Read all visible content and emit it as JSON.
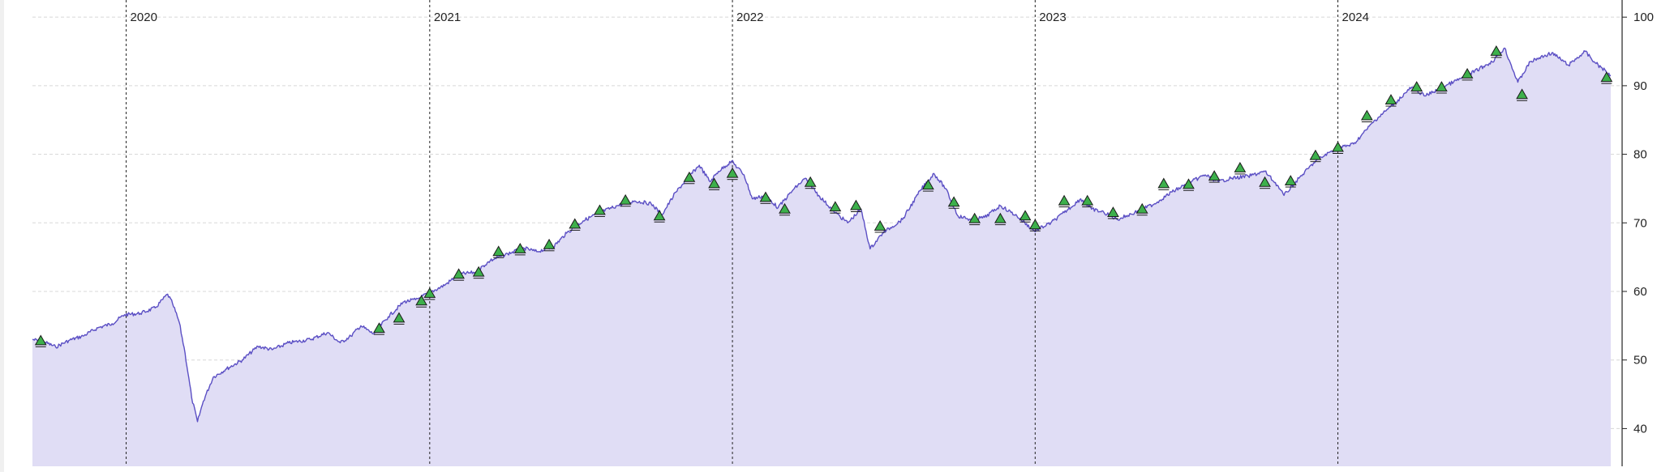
{
  "chart_data": {
    "type": "area",
    "x_unit": "date",
    "y_axis": {
      "position": "right",
      "range": [
        34.5,
        102.5
      ],
      "ticks": [
        40,
        50,
        60,
        70,
        80,
        90,
        100
      ],
      "tick_labels": [
        "40",
        "50",
        "60",
        "70",
        "80",
        "90",
        "100"
      ]
    },
    "x_axis": {
      "range": [
        "2019-09-10",
        "2024-11-26"
      ],
      "year_markers": [
        {
          "date": "2020-01-01",
          "label": "2020"
        },
        {
          "date": "2021-01-01",
          "label": "2021"
        },
        {
          "date": "2022-01-01",
          "label": "2022"
        },
        {
          "date": "2023-01-01",
          "label": "2023"
        },
        {
          "date": "2024-01-01",
          "label": "2024"
        }
      ]
    },
    "grid": {
      "horizontal": true,
      "style": "dashed"
    },
    "colors": {
      "line": "#5b4fc4",
      "fill": "#e0ddf5",
      "marker_fill": "#3db04b",
      "marker_edge": "#1a1a1a",
      "grid": "#d8d8d8",
      "year_line": "#222222",
      "axis": "#222222"
    },
    "series": [
      {
        "values": [
          [
            "2019-09-10",
            53.0
          ],
          [
            "2019-09-25",
            52.6
          ],
          [
            "2019-10-08",
            51.9
          ],
          [
            "2019-10-25",
            52.9
          ],
          [
            "2019-11-10",
            53.5
          ],
          [
            "2019-11-28",
            54.7
          ],
          [
            "2019-12-15",
            55.3
          ],
          [
            "2019-12-30",
            56.6
          ],
          [
            "2020-01-18",
            56.8
          ],
          [
            "2020-02-05",
            57.6
          ],
          [
            "2020-02-20",
            59.6
          ],
          [
            "2020-02-26",
            58.2
          ],
          [
            "2020-03-05",
            55.5
          ],
          [
            "2020-03-12",
            51.0
          ],
          [
            "2020-03-20",
            44.5
          ],
          [
            "2020-03-27",
            41.0
          ],
          [
            "2020-04-03",
            44.0
          ],
          [
            "2020-04-15",
            47.5
          ],
          [
            "2020-05-01",
            48.7
          ],
          [
            "2020-05-20",
            50.0
          ],
          [
            "2020-06-08",
            52.0
          ],
          [
            "2020-06-25",
            51.5
          ],
          [
            "2020-07-15",
            52.5
          ],
          [
            "2020-08-10",
            53.0
          ],
          [
            "2020-08-31",
            54.0
          ],
          [
            "2020-09-15",
            52.5
          ],
          [
            "2020-09-28",
            53.5
          ],
          [
            "2020-10-10",
            55.0
          ],
          [
            "2020-10-25",
            53.8
          ],
          [
            "2020-11-12",
            56.3
          ],
          [
            "2020-12-01",
            58.5
          ],
          [
            "2020-12-15",
            58.8
          ],
          [
            "2021-01-01",
            59.8
          ],
          [
            "2021-01-20",
            61.0
          ],
          [
            "2021-02-05",
            62.5
          ],
          [
            "2021-02-25",
            62.8
          ],
          [
            "2021-03-15",
            64.5
          ],
          [
            "2021-04-05",
            65.5
          ],
          [
            "2021-04-25",
            66.3
          ],
          [
            "2021-05-10",
            65.8
          ],
          [
            "2021-05-30",
            66.5
          ],
          [
            "2021-06-15",
            68.5
          ],
          [
            "2021-07-05",
            70.3
          ],
          [
            "2021-07-25",
            71.5
          ],
          [
            "2021-08-15",
            72.5
          ],
          [
            "2021-09-05",
            73.2
          ],
          [
            "2021-09-25",
            72.8
          ],
          [
            "2021-10-08",
            71.2
          ],
          [
            "2021-10-25",
            74.5
          ],
          [
            "2021-11-10",
            76.8
          ],
          [
            "2021-11-22",
            78.4
          ],
          [
            "2021-12-05",
            76.0
          ],
          [
            "2021-12-15",
            77.5
          ],
          [
            "2021-12-31",
            79.0
          ],
          [
            "2022-01-15",
            77.0
          ],
          [
            "2022-01-25",
            73.5
          ],
          [
            "2022-02-10",
            74.0
          ],
          [
            "2022-02-25",
            72.2
          ],
          [
            "2022-03-15",
            74.8
          ],
          [
            "2022-03-30",
            76.5
          ],
          [
            "2022-04-15",
            74.0
          ],
          [
            "2022-05-05",
            71.5
          ],
          [
            "2022-05-20",
            70.0
          ],
          [
            "2022-06-05",
            72.0
          ],
          [
            "2022-06-16",
            66.2
          ],
          [
            "2022-07-01",
            68.5
          ],
          [
            "2022-07-25",
            70.5
          ],
          [
            "2022-08-16",
            74.8
          ],
          [
            "2022-09-01",
            77.2
          ],
          [
            "2022-09-15",
            75.0
          ],
          [
            "2022-09-30",
            71.0
          ],
          [
            "2022-10-15",
            70.5
          ],
          [
            "2022-11-01",
            70.8
          ],
          [
            "2022-11-20",
            72.5
          ],
          [
            "2022-12-10",
            71.0
          ],
          [
            "2022-12-31",
            68.8
          ],
          [
            "2023-01-20",
            70.0
          ],
          [
            "2023-02-05",
            71.5
          ],
          [
            "2023-02-25",
            73.5
          ],
          [
            "2023-03-10",
            72.0
          ],
          [
            "2023-03-25",
            71.5
          ],
          [
            "2023-04-10",
            70.5
          ],
          [
            "2023-05-01",
            71.5
          ],
          [
            "2023-05-25",
            72.8
          ],
          [
            "2023-06-15",
            74.5
          ],
          [
            "2023-07-05",
            75.8
          ],
          [
            "2023-07-25",
            77.0
          ],
          [
            "2023-08-10",
            76.0
          ],
          [
            "2023-08-25",
            76.5
          ],
          [
            "2023-09-15",
            76.8
          ],
          [
            "2023-10-05",
            77.5
          ],
          [
            "2023-10-20",
            75.5
          ],
          [
            "2023-10-28",
            74.0
          ],
          [
            "2023-11-15",
            76.5
          ],
          [
            "2023-12-05",
            79.0
          ],
          [
            "2023-12-29",
            80.8
          ],
          [
            "2024-01-20",
            81.5
          ],
          [
            "2024-02-15",
            85.0
          ],
          [
            "2024-03-10",
            87.5
          ],
          [
            "2024-03-30",
            89.8
          ],
          [
            "2024-04-15",
            88.5
          ],
          [
            "2024-05-10",
            90.0
          ],
          [
            "2024-06-05",
            91.5
          ],
          [
            "2024-07-05",
            93.5
          ],
          [
            "2024-07-20",
            95.5
          ],
          [
            "2024-08-05",
            90.5
          ],
          [
            "2024-08-20",
            93.5
          ],
          [
            "2024-09-15",
            94.8
          ],
          [
            "2024-10-05",
            93.0
          ],
          [
            "2024-10-25",
            95.0
          ],
          [
            "2024-11-05",
            93.5
          ],
          [
            "2024-11-25",
            91.5
          ]
        ]
      }
    ],
    "markers": {
      "shape": "triangle-up",
      "points": [
        [
          "2019-09-20",
          52.8
        ],
        [
          "2020-11-01",
          54.6
        ],
        [
          "2020-11-25",
          56.1
        ],
        [
          "2020-12-22",
          58.6
        ],
        [
          "2021-01-01",
          59.7
        ],
        [
          "2021-02-05",
          62.5
        ],
        [
          "2021-03-01",
          62.8
        ],
        [
          "2021-03-25",
          65.8
        ],
        [
          "2021-04-20",
          66.2
        ],
        [
          "2021-05-25",
          66.8
        ],
        [
          "2021-06-25",
          69.8
        ],
        [
          "2021-07-25",
          71.8
        ],
        [
          "2021-08-25",
          73.3
        ],
        [
          "2021-10-05",
          71.0
        ],
        [
          "2021-11-10",
          76.6
        ],
        [
          "2021-12-10",
          75.7
        ],
        [
          "2022-01-01",
          77.2
        ],
        [
          "2022-02-10",
          73.7
        ],
        [
          "2022-03-05",
          72.0
        ],
        [
          "2022-04-05",
          75.9
        ],
        [
          "2022-05-05",
          72.3
        ],
        [
          "2022-05-30",
          72.5
        ],
        [
          "2022-06-28",
          69.5
        ],
        [
          "2022-08-25",
          75.5
        ],
        [
          "2022-09-25",
          73.0
        ],
        [
          "2022-10-20",
          70.6
        ],
        [
          "2022-11-20",
          70.6
        ],
        [
          "2022-12-20",
          71.0
        ],
        [
          "2023-01-01",
          69.7
        ],
        [
          "2023-02-05",
          73.2
        ],
        [
          "2023-03-05",
          73.2
        ],
        [
          "2023-04-05",
          71.5
        ],
        [
          "2023-05-10",
          72.0
        ],
        [
          "2023-06-05",
          75.7
        ],
        [
          "2023-07-05",
          75.6
        ],
        [
          "2023-08-05",
          76.8
        ],
        [
          "2023-09-05",
          78.0
        ],
        [
          "2023-10-05",
          75.9
        ],
        [
          "2023-11-05",
          76.1
        ],
        [
          "2023-12-05",
          79.8
        ],
        [
          "2024-01-01",
          81.0
        ],
        [
          "2024-02-05",
          85.6
        ],
        [
          "2024-03-05",
          87.9
        ],
        [
          "2024-04-05",
          89.8
        ],
        [
          "2024-05-05",
          89.8
        ],
        [
          "2024-06-05",
          91.7
        ],
        [
          "2024-07-10",
          95.0
        ],
        [
          "2024-08-10",
          88.7
        ],
        [
          "2024-11-20",
          91.2
        ]
      ]
    }
  }
}
